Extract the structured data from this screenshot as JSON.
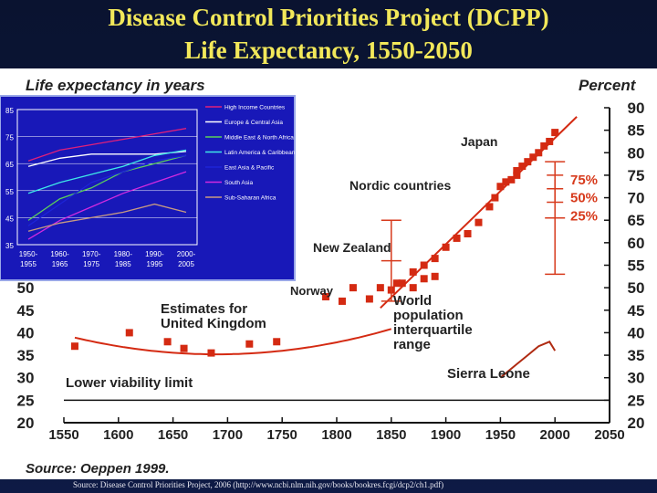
{
  "slide": {
    "title_line1": "Disease Control Priorities Project (DCPP)",
    "title_line2": "Life Expectancy, 1550-2050",
    "source_text": "Source: Disease Control Priorities Project, 2006 (http://www.ncbi.nlm.nih.gov/books/bookres.fcgi/dcp2/ch1.pdf)"
  },
  "chart_data": [
    {
      "type": "scatter",
      "title": "Life expectancy in years",
      "ylabel_right": "Percent",
      "xlim": [
        1550,
        2050
      ],
      "ylim": [
        20,
        90
      ],
      "x_ticks": [
        1550,
        1600,
        1650,
        1700,
        1750,
        1800,
        1850,
        1900,
        1950,
        2000,
        2050
      ],
      "y_ticks": [
        20,
        25,
        30,
        35,
        40,
        45,
        50,
        55,
        60,
        65,
        70,
        75,
        80,
        85,
        90
      ],
      "grid": false,
      "source": "Source: Oeppen 1999.",
      "annotations": [
        "Japan",
        "Nordic countries",
        "New Zealand",
        "Norway",
        "Estimates for",
        "United Kingdom",
        "World",
        "population",
        "interquartile",
        "range",
        "Sierra Leone",
        "Lower viability limit"
      ],
      "percentile_labels": [
        "75%",
        "50%",
        "25%"
      ],
      "colors": {
        "best_practice": "#d42a12",
        "uk_trend": "#d42a12",
        "sierra_leone": "#b02b12",
        "box": "#d73a1c"
      },
      "series": [
        {
          "name": "United Kingdom",
          "x": [
            1560,
            1610,
            1645,
            1660,
            1685,
            1720,
            1745
          ],
          "y": [
            37,
            40,
            38,
            36.5,
            35.5,
            37.5,
            38
          ]
        },
        {
          "name": "Norway",
          "x": [
            1790,
            1805,
            1815,
            1830,
            1840,
            1850,
            1855,
            1860,
            1870,
            1880,
            1890
          ],
          "y": [
            48,
            47,
            50,
            47.5,
            50,
            49.5,
            51,
            51,
            50,
            52,
            52.5
          ]
        },
        {
          "name": "New Zealand",
          "x": [
            1870,
            1880,
            1890,
            1900,
            1910,
            1920,
            1930
          ],
          "y": [
            53.5,
            55,
            56.5,
            59,
            61,
            62,
            64.5
          ]
        },
        {
          "name": "Nordic countries",
          "x": [
            1940,
            1945,
            1950,
            1955,
            1960,
            1965
          ],
          "y": [
            68,
            70,
            72.5,
            73.5,
            74,
            75
          ]
        },
        {
          "name": "Japan",
          "x": [
            1965,
            1970,
            1975,
            1980,
            1985,
            1990,
            1995,
            2000
          ],
          "y": [
            76,
            77,
            78,
            79,
            80,
            81.5,
            82.5,
            84.5
          ]
        },
        {
          "name": "Sierra Leone",
          "x": [
            1950,
            1965,
            1975,
            1985,
            1995,
            2000
          ],
          "y": [
            30,
            33,
            35,
            37,
            38,
            36
          ]
        }
      ],
      "interquartile_1850": [
        47,
        65
      ],
      "interquartile_2000": [
        53,
        78
      ]
    },
    {
      "type": "line",
      "title": "",
      "ylim": [
        35,
        85
      ],
      "y_ticks": [
        35,
        45,
        55,
        65,
        75,
        85
      ],
      "categories": [
        "1950-1955",
        "1960-1965",
        "1970-1975",
        "1980-1985",
        "1990-1995",
        "2000-2005"
      ],
      "series": [
        {
          "name": "High Income Countries",
          "color": "#e0207a",
          "values": [
            66,
            70,
            72,
            74,
            76,
            78
          ]
        },
        {
          "name": "Europe & Central Asia",
          "color": "#ffffff",
          "values": [
            64,
            67,
            68.5,
            68.5,
            68.5,
            69.5
          ]
        },
        {
          "name": "Middle East & North Africa",
          "color": "#5bd05b",
          "values": [
            44,
            52,
            56,
            62,
            65,
            68
          ]
        },
        {
          "name": "Latin America & Caribbean",
          "color": "#3ee8e8",
          "values": [
            54,
            58,
            61,
            64,
            68,
            70
          ]
        },
        {
          "name": "East Asia & Pacific",
          "color": "#1d24d8",
          "values": [
            42,
            50,
            58,
            62,
            66,
            68
          ]
        },
        {
          "name": "South Asia",
          "color": "#d22ae0",
          "values": [
            37,
            44,
            49,
            54,
            58,
            62
          ]
        },
        {
          "name": "Sub-Saharan Africa",
          "color": "#c79a82",
          "values": [
            40,
            43,
            45,
            47,
            50,
            47
          ]
        }
      ]
    }
  ]
}
